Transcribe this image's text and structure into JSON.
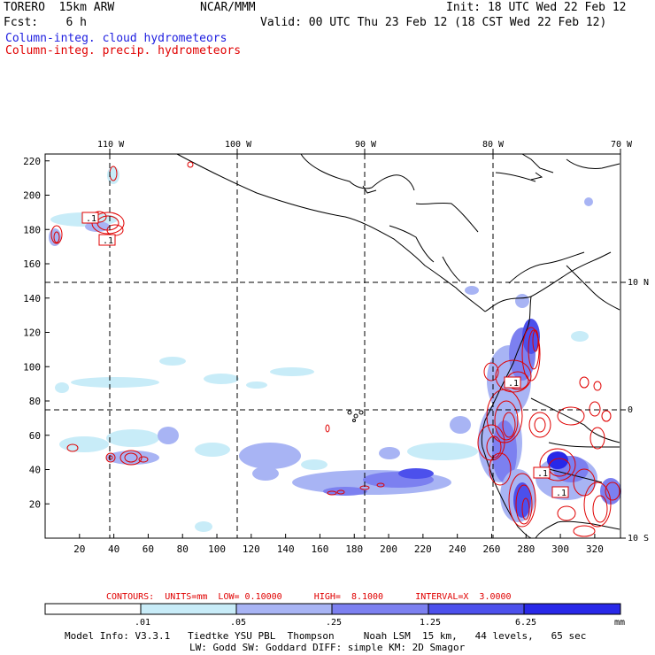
{
  "header": {
    "model": "TORERO  15km ARW",
    "org": "NCAR/MMM",
    "init": "Init: 18 UTC Wed 22 Feb 12",
    "fcst": "Fcst:    6 h",
    "valid": "Valid: 00 UTC Thu 23 Feb 12 (18 CST Wed 22 Feb 12)",
    "legend_cloud": "Column-integ. cloud hydrometeors",
    "legend_precip": "Column-integ. precip. hydrometeors"
  },
  "colors": {
    "cloud": "#2020e0",
    "precip": "#e00000",
    "shade1": "#c8ecf8",
    "shade2": "#a8b4f4",
    "shade3": "#7c80f0",
    "shade4": "#4c50ec",
    "shade5": "#2828e8"
  },
  "map": {
    "lon_labels": [
      "110 W",
      "100 W",
      "90 W",
      "80 W",
      "70 W"
    ],
    "lat_labels": [
      "10 N",
      "0",
      "10 S"
    ],
    "x_ticks": [
      "20",
      "40",
      "60",
      "80",
      "100",
      "120",
      "140",
      "160",
      "180",
      "200",
      "220",
      "240",
      "260",
      "280",
      "300",
      "320"
    ],
    "y_ticks": [
      "220",
      "200",
      "180",
      "160",
      "140",
      "120",
      "100",
      "80",
      "60",
      "40",
      "20"
    ],
    "contour_box_labels": [
      ".1",
      ".1",
      ".1",
      ".1",
      ".1",
      ".1",
      ".1"
    ]
  },
  "contour_info": {
    "label": "CONTOURS:  UNITS=mm  LOW= 0.10000      HIGH=  8.1000      INTERVAL=X  3.0000"
  },
  "colorbar": {
    "labels": [
      ".01",
      ".05",
      ".25",
      "1.25",
      "6.25"
    ],
    "units": "mm"
  },
  "model_info": {
    "line1": "Model Info: V3.3.1   Tiedtke YSU PBL  Thompson     Noah LSM  15 km,   44 levels,   65 sec",
    "line2": "LW: Godd SW: Goddard DIFF: simple KM: 2D Smagor"
  }
}
